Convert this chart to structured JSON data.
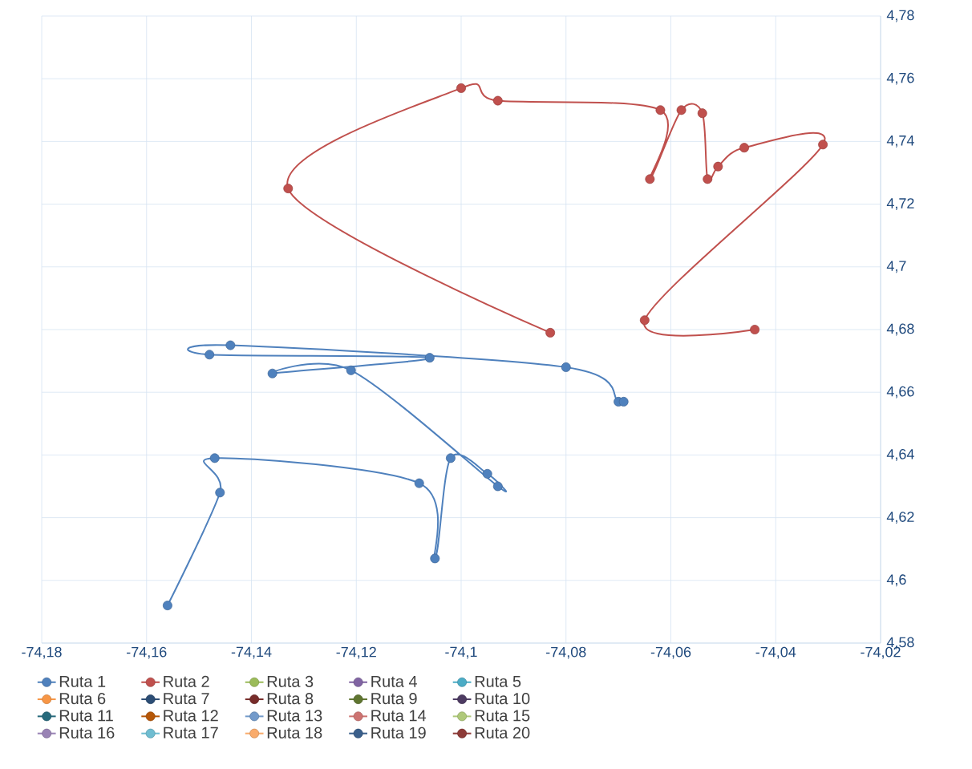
{
  "chart_data": {
    "type": "line",
    "marker": "circle",
    "grid": true,
    "legend": "bottom",
    "xlim": [
      -74.18,
      -74.02
    ],
    "xticks": [
      {
        "value": -74.18,
        "label": "-74,18"
      },
      {
        "value": -74.16,
        "label": "-74,16"
      },
      {
        "value": -74.14,
        "label": "-74,14"
      },
      {
        "value": -74.12,
        "label": "-74,12"
      },
      {
        "value": -74.1,
        "label": "-74,1"
      },
      {
        "value": -74.08,
        "label": "-74,08"
      },
      {
        "value": -74.06,
        "label": "-74,06"
      },
      {
        "value": -74.04,
        "label": "-74,04"
      },
      {
        "value": -74.02,
        "label": "-74,02"
      }
    ],
    "ylim": [
      4.58,
      4.78
    ],
    "yticks": [
      {
        "value": 4.58,
        "label": "4,58"
      },
      {
        "value": 4.6,
        "label": "4,6"
      },
      {
        "value": 4.62,
        "label": "4,62"
      },
      {
        "value": 4.64,
        "label": "4,64"
      },
      {
        "value": 4.66,
        "label": "4,66"
      },
      {
        "value": 4.68,
        "label": "4,68"
      },
      {
        "value": 4.7,
        "label": "4,7"
      },
      {
        "value": 4.72,
        "label": "4,72"
      },
      {
        "value": 4.74,
        "label": "4,74"
      },
      {
        "value": 4.76,
        "label": "4,76"
      },
      {
        "value": 4.78,
        "label": "4,78"
      }
    ],
    "series": [
      {
        "name": "Ruta 1",
        "color": "#4f81bd",
        "x": [
          -74.156,
          -74.146,
          -74.147,
          -74.108,
          -74.105,
          -74.102,
          -74.095,
          -74.093,
          -74.121,
          -74.136,
          -74.106,
          -74.148,
          -74.144,
          -74.08,
          -74.07,
          -74.069
        ],
        "values": [
          4.592,
          4.628,
          4.639,
          4.631,
          4.607,
          4.639,
          4.634,
          4.63,
          4.667,
          4.666,
          4.671,
          4.672,
          4.675,
          4.668,
          4.657,
          4.657
        ]
      },
      {
        "name": "Ruta 2",
        "color": "#c0504d",
        "x": [
          -74.083,
          -74.133,
          -74.1,
          -74.093,
          -74.062,
          -74.064,
          -74.058,
          -74.054,
          -74.053,
          -74.051,
          -74.046,
          -74.031,
          -74.065,
          -74.044
        ],
        "values": [
          4.679,
          4.725,
          4.757,
          4.753,
          4.75,
          4.728,
          4.75,
          4.749,
          4.728,
          4.732,
          4.738,
          4.739,
          4.683,
          4.68
        ]
      },
      {
        "name": "Ruta 3",
        "color": "#9bbb59"
      },
      {
        "name": "Ruta 4",
        "color": "#8064a2"
      },
      {
        "name": "Ruta 5",
        "color": "#4bacc6"
      },
      {
        "name": "Ruta 6",
        "color": "#f79646"
      },
      {
        "name": "Ruta 7",
        "color": "#2c4d75"
      },
      {
        "name": "Ruta 8",
        "color": "#772c2a"
      },
      {
        "name": "Ruta 9",
        "color": "#5f7530"
      },
      {
        "name": "Ruta 10",
        "color": "#4d3b62"
      },
      {
        "name": "Ruta 11",
        "color": "#276a7c"
      },
      {
        "name": "Ruta 12",
        "color": "#b65708"
      },
      {
        "name": "Ruta 13",
        "color": "#729aca"
      },
      {
        "name": "Ruta 14",
        "color": "#cd7371"
      },
      {
        "name": "Ruta 15",
        "color": "#afc97a"
      },
      {
        "name": "Ruta 16",
        "color": "#9983b5"
      },
      {
        "name": "Ruta 17",
        "color": "#6fbdd1"
      },
      {
        "name": "Ruta 18",
        "color": "#f9ab6b"
      },
      {
        "name": "Ruta 19",
        "color": "#3a5f8b"
      },
      {
        "name": "Ruta 20",
        "color": "#8e3b38"
      }
    ]
  }
}
